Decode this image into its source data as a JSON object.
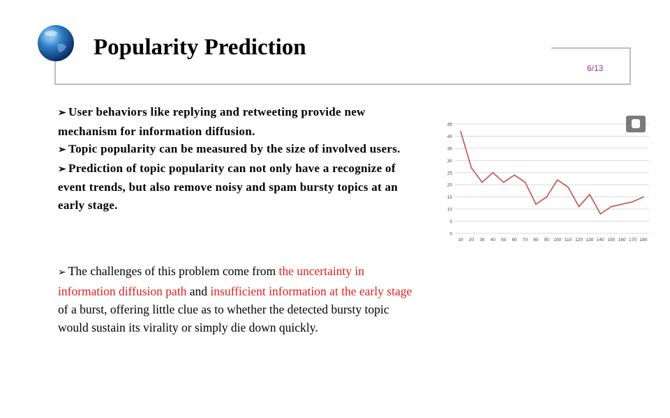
{
  "slide": {
    "title": "Popularity Prediction",
    "page": "6/13",
    "bullets": [
      "User behaviors like replying and retweeting provide new mechanism for information diffusion.",
      "Topic popularity can be measured by the size of involved users.",
      "Prediction of topic popularity can not only have a recognize of event trends, but also remove noisy and spam bursty topics at an early stage."
    ],
    "paragraph": {
      "p1": "The challenges of this problem come from ",
      "r1": "the uncertainty in information diffusion path",
      "p2": " and ",
      "r2": "insufficient information at the early stage",
      "p3": " of a burst, offering little clue as to whether the detected bursty topic would sustain its virality or simply die down quickly."
    }
  },
  "colors": {
    "line": "#c0504d",
    "accent_red": "#e02020",
    "page_number": "#a0318c"
  },
  "icons": [
    "globe-icon",
    "camera-icon",
    "arrow-bullet-icon"
  ],
  "chart_data": {
    "type": "line",
    "x": [
      10,
      20,
      30,
      40,
      50,
      60,
      70,
      80,
      90,
      100,
      110,
      120,
      130,
      140,
      150,
      160,
      170,
      180
    ],
    "values": [
      42,
      27,
      21,
      25,
      21,
      24,
      21,
      12,
      15,
      22,
      19,
      11,
      16,
      8,
      11,
      12,
      13,
      15
    ],
    "ylim": [
      0,
      45
    ],
    "yticks": [
      0,
      5,
      10,
      15,
      20,
      25,
      30,
      35,
      40,
      45
    ],
    "grid": true,
    "title": "",
    "xlabel": "",
    "ylabel": ""
  }
}
